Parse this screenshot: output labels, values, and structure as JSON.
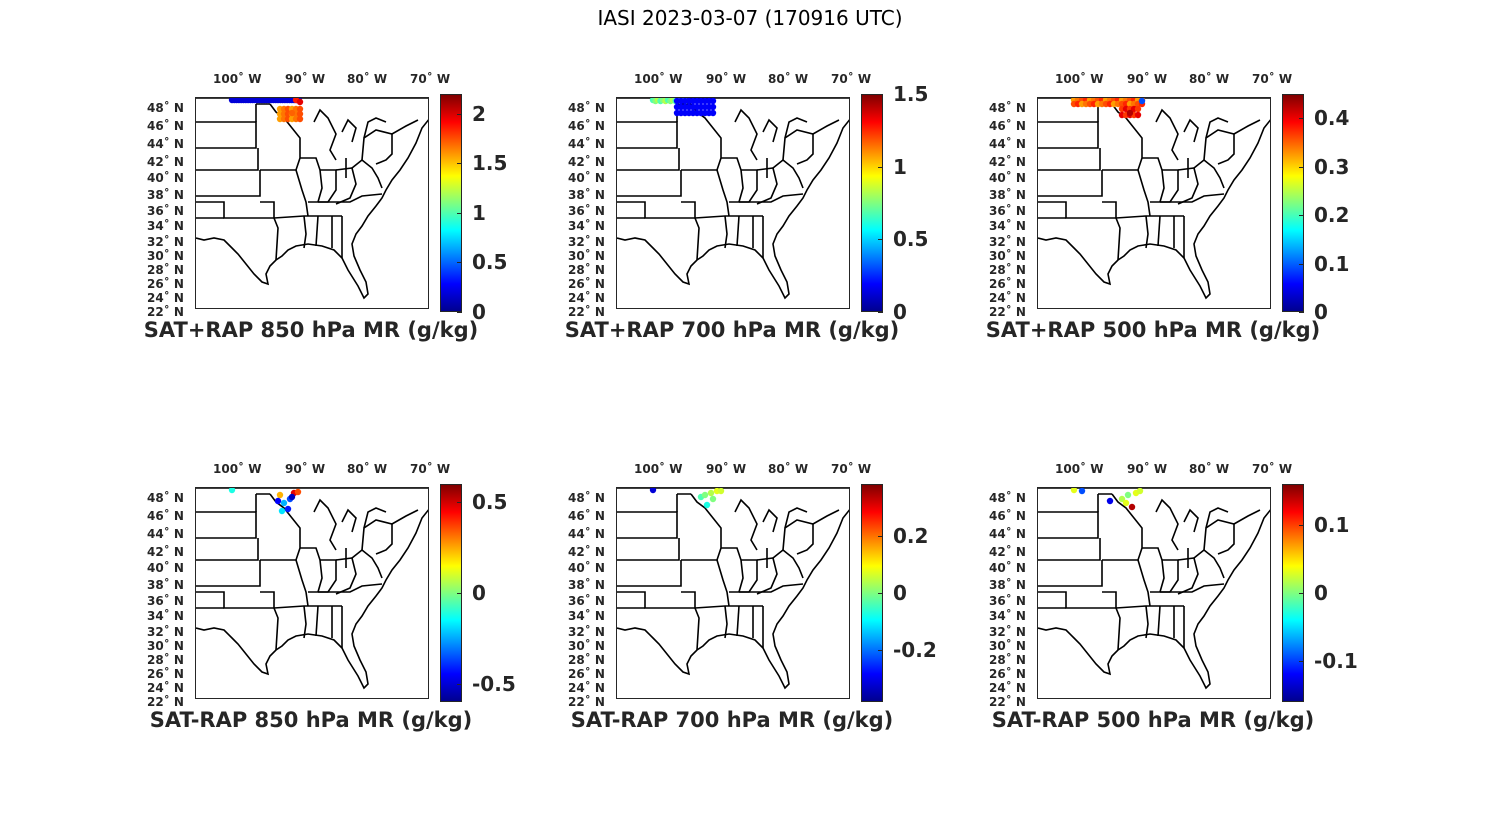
{
  "title": "IASI 2023-03-07 (170916 UTC)",
  "lon_labels": [
    "100˚ W",
    "90˚ W",
    "80˚ W",
    "70˚ W"
  ],
  "lat_labels": [
    "48˚ N",
    "46˚ N",
    "44˚ N",
    "42˚ N",
    "40˚ N",
    "38˚ N",
    "36˚ N",
    "34˚ N",
    "32˚ N",
    "30˚ N",
    "28˚ N",
    "26˚ N",
    "24˚ N",
    "22˚ N"
  ],
  "panels": [
    {
      "id": "p1",
      "title": "SAT+RAP 850 hPa MR (g/kg)",
      "cbar_ticks": [
        "2",
        "1.5",
        "1",
        "0.5",
        "0"
      ],
      "cbar_range": [
        0,
        2.2
      ],
      "tick_values": [
        2,
        1.5,
        1,
        0.5,
        0
      ]
    },
    {
      "id": "p2",
      "title": "SAT+RAP 700 hPa MR (g/kg)",
      "cbar_ticks": [
        "1.5",
        "1",
        "0.5",
        "0"
      ],
      "cbar_range": [
        0,
        1.5
      ],
      "tick_values": [
        1.5,
        1,
        0.5,
        0
      ]
    },
    {
      "id": "p3",
      "title": "SAT+RAP 500 hPa MR (g/kg)",
      "cbar_ticks": [
        "0.4",
        "0.3",
        "0.2",
        "0.1",
        "0"
      ],
      "cbar_range": [
        0,
        0.45
      ],
      "tick_values": [
        0.4,
        0.3,
        0.2,
        0.1,
        0
      ]
    },
    {
      "id": "p4",
      "title": "SAT-RAP 850 hPa MR (g/kg)",
      "cbar_ticks": [
        "0.5",
        "0",
        "-0.5"
      ],
      "cbar_range": [
        -0.6,
        0.6
      ],
      "tick_values": [
        0.5,
        0,
        -0.5
      ]
    },
    {
      "id": "p5",
      "title": "SAT-RAP 700 hPa MR (g/kg)",
      "cbar_ticks": [
        "0.2",
        "0",
        "-0.2"
      ],
      "cbar_range": [
        -0.38,
        0.38
      ],
      "tick_values": [
        0.2,
        0,
        -0.2
      ]
    },
    {
      "id": "p6",
      "title": "SAT-RAP 500 hPa MR (g/kg)",
      "cbar_ticks": [
        "0.1",
        "0",
        "-0.1"
      ],
      "cbar_range": [
        -0.16,
        0.16
      ],
      "tick_values": [
        0.1,
        0,
        -0.1
      ]
    }
  ]
}
